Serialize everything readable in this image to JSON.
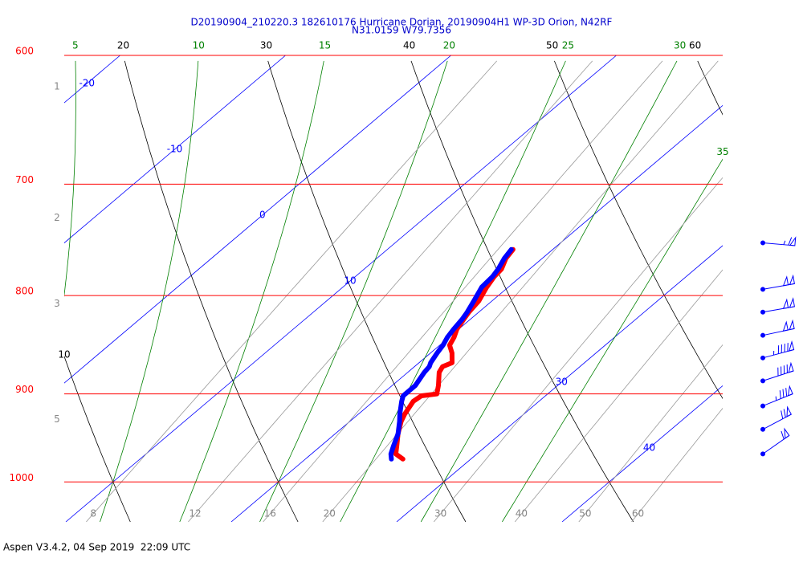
{
  "chart_data": {
    "type": "skewt",
    "title": "D20190904_210220.3 182610176 Hurricane Dorian, 20190904H1 WP-3D Orion, N42RF",
    "subtitle": "N31.0159 W79.7356",
    "footer": "Aspen V3.4.2, 04 Sep 2019  22:09 UTC",
    "log_scale": true,
    "ylim": [
      1049,
      600
    ],
    "yticks": [
      600,
      700,
      800,
      900,
      1000
    ],
    "pressure_color": "#ff0000",
    "side_ticks": [
      {
        "value": 623,
        "label": "1"
      },
      {
        "value": 729,
        "label": "2"
      },
      {
        "value": 808,
        "label": "3"
      },
      {
        "value": 928,
        "label": "5"
      }
    ],
    "pressure": [
      973,
      967,
      958,
      944,
      930,
      922,
      908,
      902,
      900,
      891,
      877,
      871,
      867,
      857,
      849,
      841,
      833,
      823,
      816,
      805,
      792,
      782,
      775,
      765,
      757
    ],
    "temperature": {
      "color": "#ff0000",
      "values": [
        25.9,
        25.1,
        24.6,
        23.8,
        23.1,
        22.8,
        22.4,
        22.5,
        23.3,
        22.8,
        21.9,
        21.7,
        22.0,
        21.3,
        20.6,
        20.3,
        19.9,
        19.6,
        19.4,
        19.2,
        18.7,
        18.4,
        18.3,
        17.8,
        17.6
      ]
    },
    "dewpoint": {
      "color": "#0000ff",
      "values": [
        25.2,
        24.8,
        24.4,
        23.8,
        23.0,
        22.5,
        21.7,
        21.4,
        21.4,
        21.4,
        21.0,
        20.9,
        20.7,
        20.4,
        20.2,
        19.9,
        19.7,
        19.5,
        19.3,
        18.9,
        18.4,
        18.3,
        18.1,
        17.7,
        17.5
      ]
    },
    "isotherms": {
      "color": "#0000ff",
      "values": [
        -20,
        -10,
        0,
        10,
        20,
        30,
        40
      ]
    },
    "isotherm_labels": [
      -20,
      -10,
      0,
      10,
      30,
      40
    ],
    "dry_adiabats": {
      "color": "#000000",
      "values": [
        10,
        20,
        30,
        40,
        50,
        60
      ]
    },
    "moist_adiabats": {
      "color": "#008000",
      "values": [
        5,
        10,
        15,
        20,
        25,
        30,
        35
      ]
    },
    "mixing_ratios": {
      "color": "#999999",
      "values": [
        8,
        12,
        16,
        20,
        30,
        40,
        50,
        60
      ]
    },
    "wind": {
      "color": "#0000ff",
      "pressure": [
        751,
        794,
        816,
        839,
        862,
        886,
        913,
        939,
        967
      ],
      "speed": [
        65,
        100,
        100,
        100,
        95,
        90,
        85,
        70,
        60
      ],
      "direction": [
        95,
        80,
        80,
        78,
        75,
        72,
        68,
        62,
        55
      ]
    }
  }
}
